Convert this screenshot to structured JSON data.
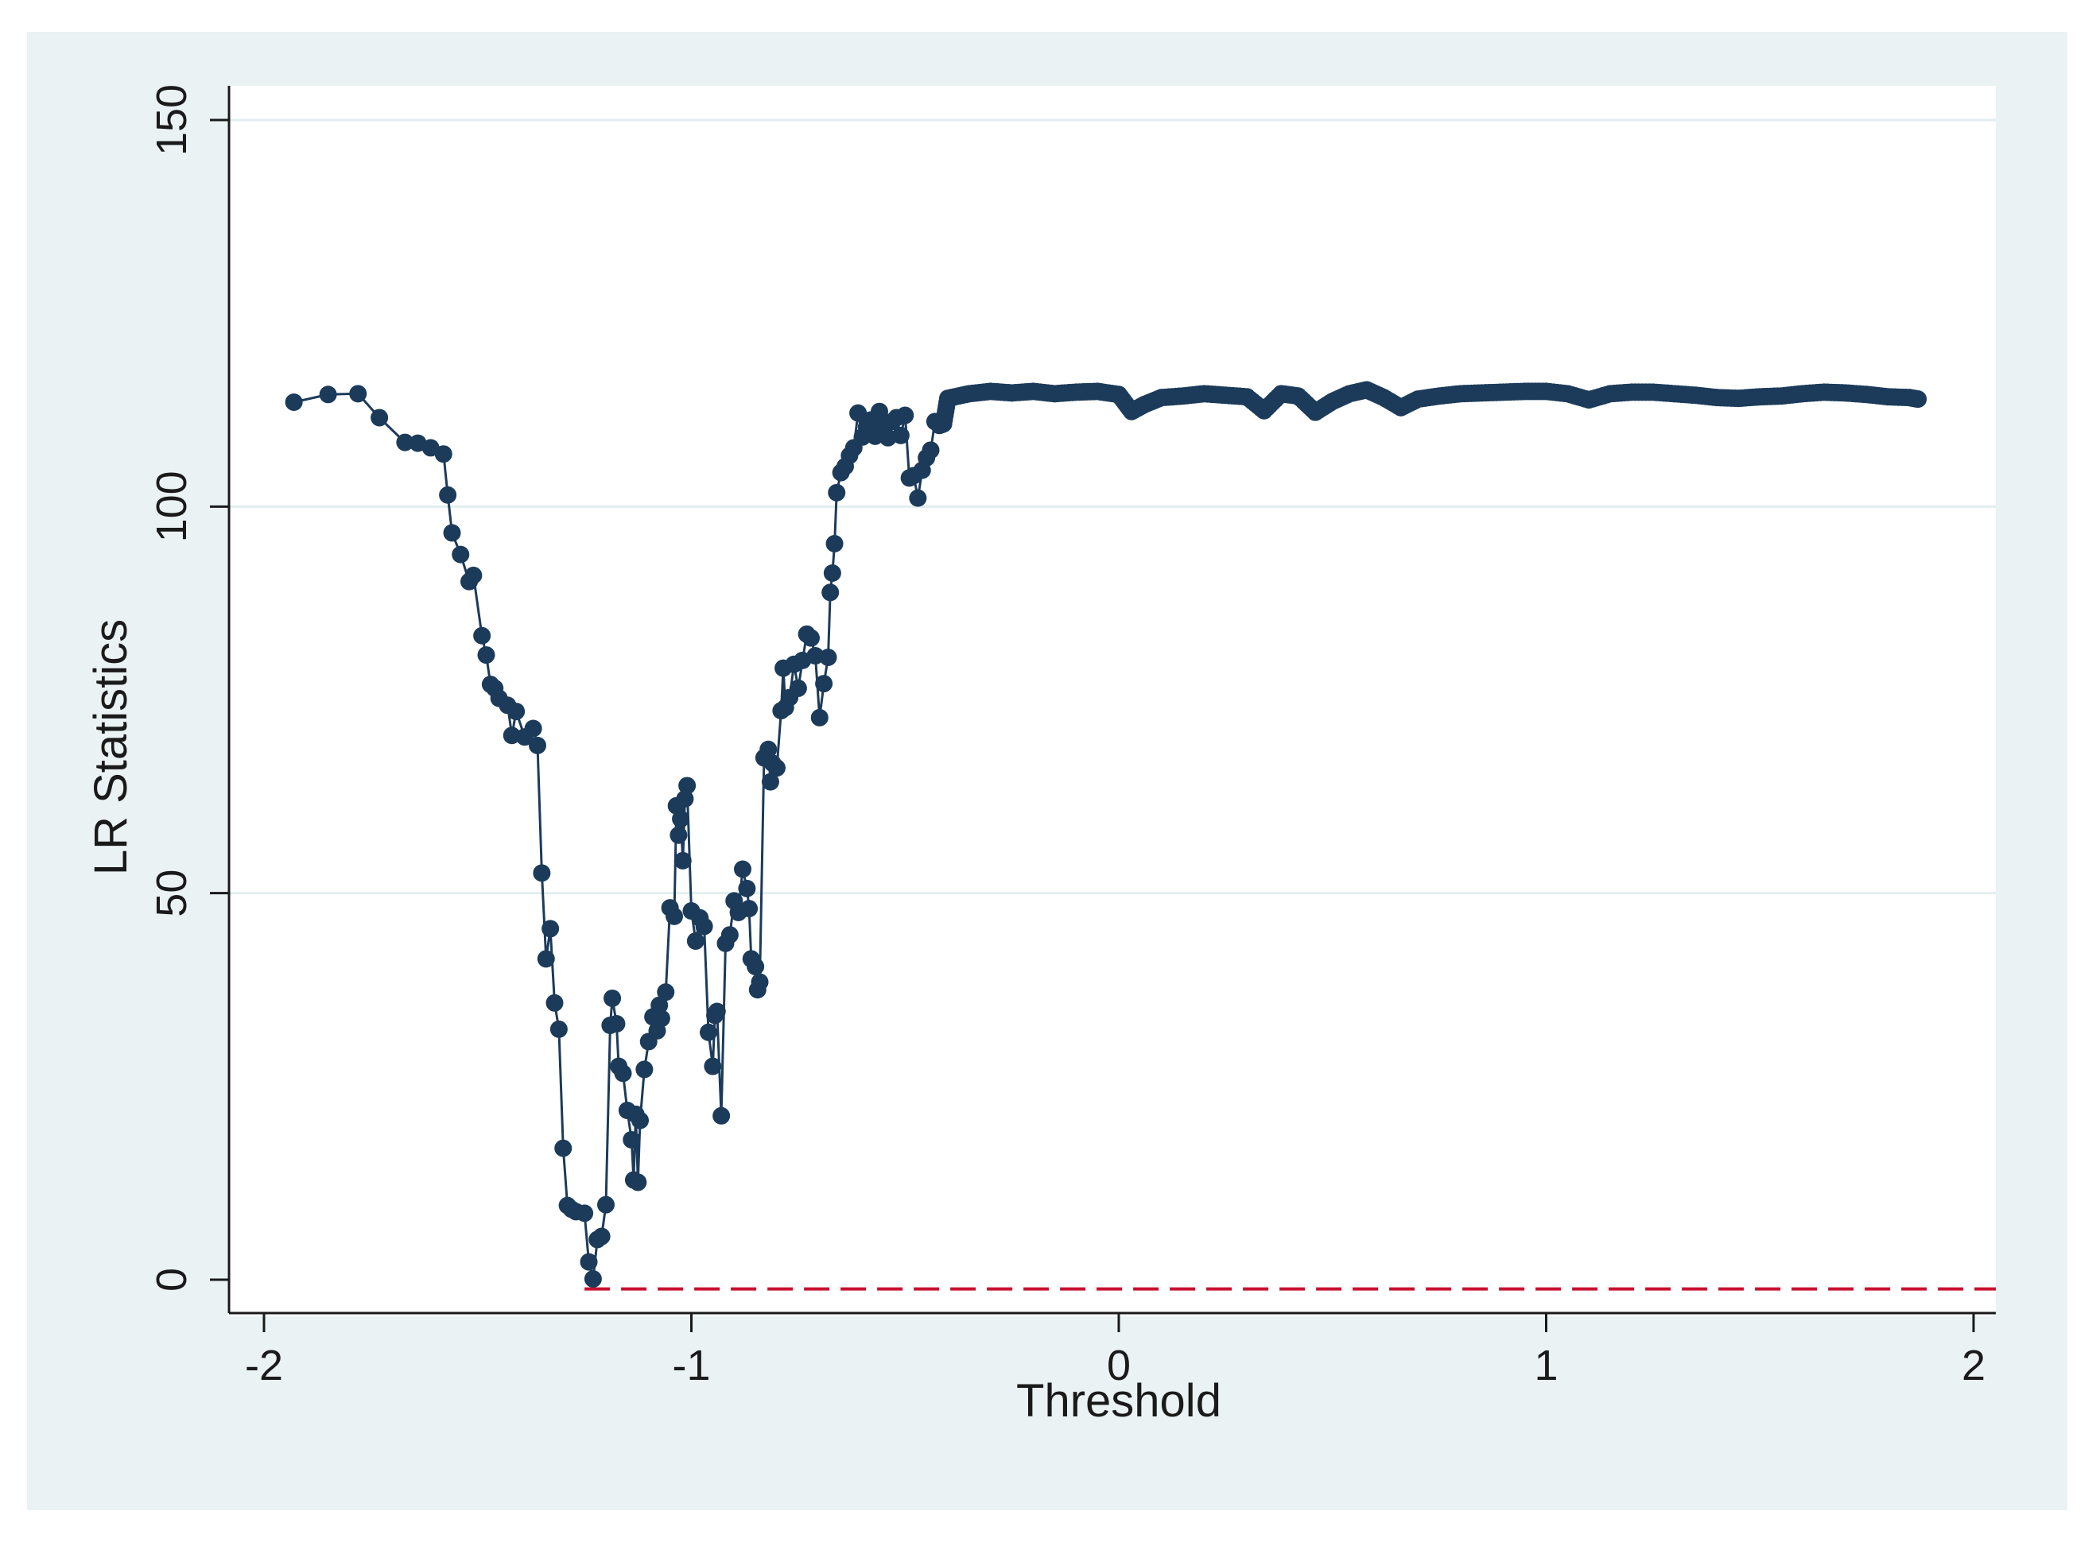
{
  "chart_data": {
    "type": "line",
    "title": "",
    "xlabel": "Threshold",
    "ylabel": "LR Statistics",
    "xlim": [
      -2.1,
      2.07
    ],
    "ylim": [
      -4,
      151
    ],
    "x_ticks": [
      "-2",
      "-1",
      "0",
      "1",
      "2"
    ],
    "y_ticks": [
      "0",
      "50",
      "100",
      "150"
    ],
    "x_tick_values": [
      -2,
      -1,
      0,
      1,
      2
    ],
    "y_tick_values": [
      0,
      50,
      100,
      150
    ],
    "y_gridlines": true,
    "colors": {
      "frame_background": "#eaf2f3",
      "plot_background": "#ffffff",
      "series": "#1c3b5a",
      "reference_line": "#c8102e",
      "gridline": "#e3eef0",
      "axis": "#1a1a1a"
    },
    "reference_line": {
      "y": -1.2,
      "style": "dashed"
    },
    "series": [
      {
        "marker": "circle",
        "points": [
          [
            -1.93,
            113.5
          ],
          [
            -1.85,
            114.5
          ],
          [
            -1.78,
            114.6
          ],
          [
            -1.73,
            111.5
          ],
          [
            -1.67,
            108.3
          ],
          [
            -1.64,
            108.2
          ],
          [
            -1.61,
            107.6
          ],
          [
            -1.58,
            106.8
          ],
          [
            -1.57,
            101.5
          ],
          [
            -1.56,
            96.6
          ],
          [
            -1.54,
            93.8
          ],
          [
            -1.52,
            90.3
          ],
          [
            -1.51,
            91.1
          ],
          [
            -1.49,
            83.3
          ],
          [
            -1.48,
            80.8
          ],
          [
            -1.47,
            77.0
          ],
          [
            -1.46,
            76.5
          ],
          [
            -1.45,
            75.2
          ],
          [
            -1.43,
            74.3
          ],
          [
            -1.42,
            70.4
          ],
          [
            -1.41,
            73.5
          ],
          [
            -1.39,
            70.2
          ],
          [
            -1.37,
            71.3
          ],
          [
            -1.36,
            69.1
          ],
          [
            -1.35,
            52.6
          ],
          [
            -1.34,
            41.5
          ],
          [
            -1.33,
            45.4
          ],
          [
            -1.32,
            35.8
          ],
          [
            -1.31,
            32.4
          ],
          [
            -1.3,
            17.0
          ],
          [
            -1.29,
            9.6
          ],
          [
            -1.28,
            9.1
          ],
          [
            -1.27,
            8.8
          ],
          [
            -1.25,
            8.6
          ],
          [
            -1.24,
            2.3
          ],
          [
            -1.23,
            0.1
          ],
          [
            -1.22,
            5.2
          ],
          [
            -1.21,
            5.6
          ],
          [
            -1.2,
            9.7
          ],
          [
            -1.19,
            32.9
          ],
          [
            -1.185,
            36.4
          ],
          [
            -1.175,
            33.1
          ],
          [
            -1.17,
            27.6
          ],
          [
            -1.16,
            26.7
          ],
          [
            -1.15,
            21.9
          ],
          [
            -1.14,
            18.1
          ],
          [
            -1.135,
            12.9
          ],
          [
            -1.13,
            21.4
          ],
          [
            -1.125,
            12.6
          ],
          [
            -1.12,
            20.6
          ],
          [
            -1.11,
            27.2
          ],
          [
            -1.1,
            30.8
          ],
          [
            -1.09,
            34.0
          ],
          [
            -1.08,
            32.2
          ],
          [
            -1.075,
            35.5
          ],
          [
            -1.07,
            33.8
          ],
          [
            -1.06,
            37.2
          ],
          [
            -1.05,
            48.1
          ],
          [
            -1.04,
            47.0
          ],
          [
            -1.035,
            61.3
          ],
          [
            -1.03,
            57.5
          ],
          [
            -1.025,
            59.6
          ],
          [
            -1.02,
            54.2
          ],
          [
            -1.015,
            62.2
          ],
          [
            -1.01,
            63.9
          ],
          [
            -1.0,
            47.7
          ],
          [
            -0.99,
            43.8
          ],
          [
            -0.98,
            46.8
          ],
          [
            -0.97,
            45.7
          ],
          [
            -0.96,
            32.0
          ],
          [
            -0.95,
            27.6
          ],
          [
            -0.945,
            34.2
          ],
          [
            -0.94,
            34.7
          ],
          [
            -0.93,
            21.2
          ],
          [
            -0.92,
            43.5
          ],
          [
            -0.91,
            44.6
          ],
          [
            -0.9,
            49.0
          ],
          [
            -0.89,
            47.5
          ],
          [
            -0.88,
            53.1
          ],
          [
            -0.87,
            50.6
          ],
          [
            -0.865,
            48.0
          ],
          [
            -0.86,
            41.5
          ],
          [
            -0.85,
            40.5
          ],
          [
            -0.845,
            37.5
          ],
          [
            -0.84,
            38.5
          ],
          [
            -0.83,
            67.5
          ],
          [
            -0.82,
            68.6
          ],
          [
            -0.815,
            64.4
          ],
          [
            -0.81,
            66.8
          ],
          [
            -0.8,
            66.2
          ],
          [
            -0.79,
            73.6
          ],
          [
            -0.785,
            79.1
          ],
          [
            -0.78,
            74.0
          ],
          [
            -0.77,
            75.3
          ],
          [
            -0.76,
            79.6
          ],
          [
            -0.75,
            76.5
          ],
          [
            -0.74,
            80.1
          ],
          [
            -0.73,
            83.5
          ],
          [
            -0.72,
            83.0
          ],
          [
            -0.71,
            80.7
          ],
          [
            -0.7,
            72.7
          ],
          [
            -0.69,
            77.1
          ],
          [
            -0.68,
            80.5
          ],
          [
            -0.675,
            88.9
          ],
          [
            -0.67,
            91.4
          ],
          [
            -0.665,
            95.2
          ],
          [
            -0.66,
            101.8
          ],
          [
            -0.65,
            104.4
          ],
          [
            -0.64,
            105.2
          ],
          [
            -0.63,
            106.6
          ],
          [
            -0.62,
            107.6
          ],
          [
            -0.61,
            112.1
          ],
          [
            -0.6,
            109.0
          ],
          [
            -0.59,
            110.3
          ],
          [
            -0.58,
            111.2
          ],
          [
            -0.57,
            109.1
          ],
          [
            -0.56,
            112.3
          ],
          [
            -0.55,
            110.5
          ],
          [
            -0.54,
            108.9
          ],
          [
            -0.53,
            111.0
          ],
          [
            -0.52,
            111.5
          ],
          [
            -0.51,
            109.2
          ],
          [
            -0.5,
            111.8
          ],
          [
            -0.49,
            103.7
          ],
          [
            -0.48,
            104.0
          ],
          [
            -0.47,
            101.1
          ],
          [
            -0.46,
            104.7
          ],
          [
            -0.45,
            106.3
          ],
          [
            -0.44,
            107.3
          ],
          [
            -0.43,
            111.0
          ],
          [
            -0.42,
            110.5
          ],
          [
            -0.41,
            110.7
          ],
          [
            -0.4,
            114.0
          ],
          [
            -0.35,
            114.6
          ],
          [
            -0.3,
            114.9
          ],
          [
            -0.25,
            114.7
          ],
          [
            -0.2,
            114.9
          ],
          [
            -0.15,
            114.6
          ],
          [
            -0.1,
            114.8
          ],
          [
            -0.05,
            114.9
          ],
          [
            0.0,
            114.5
          ],
          [
            0.03,
            112.3
          ],
          [
            0.06,
            113.2
          ],
          [
            0.1,
            114.1
          ],
          [
            0.15,
            114.3
          ],
          [
            0.2,
            114.6
          ],
          [
            0.25,
            114.4
          ],
          [
            0.3,
            114.2
          ],
          [
            0.34,
            112.4
          ],
          [
            0.38,
            114.6
          ],
          [
            0.42,
            114.3
          ],
          [
            0.46,
            112.2
          ],
          [
            0.5,
            113.6
          ],
          [
            0.54,
            114.6
          ],
          [
            0.58,
            115.1
          ],
          [
            0.62,
            114.1
          ],
          [
            0.66,
            112.8
          ],
          [
            0.7,
            113.9
          ],
          [
            0.75,
            114.3
          ],
          [
            0.8,
            114.6
          ],
          [
            0.85,
            114.7
          ],
          [
            0.9,
            114.8
          ],
          [
            0.95,
            114.9
          ],
          [
            1.0,
            114.9
          ],
          [
            1.05,
            114.6
          ],
          [
            1.1,
            113.8
          ],
          [
            1.15,
            114.6
          ],
          [
            1.2,
            114.8
          ],
          [
            1.25,
            114.8
          ],
          [
            1.3,
            114.6
          ],
          [
            1.35,
            114.4
          ],
          [
            1.4,
            114.1
          ],
          [
            1.45,
            114.0
          ],
          [
            1.5,
            114.2
          ],
          [
            1.55,
            114.3
          ],
          [
            1.6,
            114.6
          ],
          [
            1.65,
            114.8
          ],
          [
            1.7,
            114.7
          ],
          [
            1.75,
            114.5
          ],
          [
            1.8,
            114.2
          ],
          [
            1.85,
            114.1
          ],
          [
            1.87,
            113.9
          ]
        ]
      }
    ]
  }
}
